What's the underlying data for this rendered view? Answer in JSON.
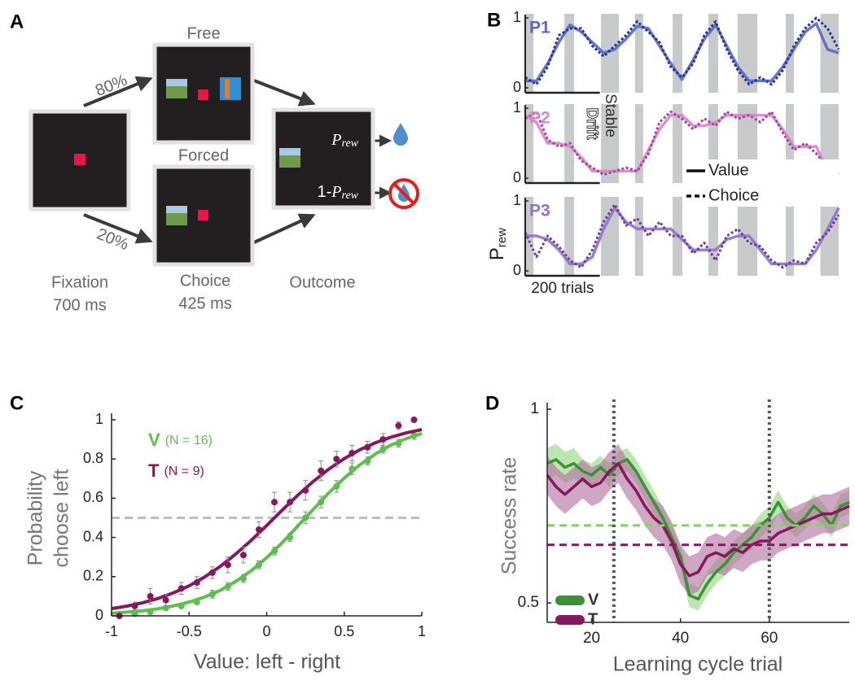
{
  "diagram": {
    "panel_label": "A",
    "free": "Free",
    "forced": "Forced",
    "free_pct": "80%",
    "forced_pct": "20%",
    "stages": [
      {
        "name": "Fixation",
        "duration": "700 ms"
      },
      {
        "name": "Choice",
        "duration": "425 ms"
      },
      {
        "name": "Outcome"
      }
    ],
    "reward": {
      "symbol": "P",
      "sub": "rew"
    },
    "no_reward": {
      "prefix": "1-",
      "symbol": "P",
      "sub": "rew"
    }
  },
  "chart_data": [
    {
      "type": "line",
      "panel_label": "B",
      "ylabel": "P",
      "ylabel_sub": "rew",
      "xlim": [
        0,
        840
      ],
      "ylim": [
        0,
        1
      ],
      "yticks": [
        0,
        1
      ],
      "scalebar": {
        "value": 200,
        "label": "200 trials"
      },
      "shaded": [
        [
          0,
          22
        ],
        [
          105,
          131
        ],
        [
          203,
          251
        ],
        [
          294,
          316
        ],
        [
          395,
          421
        ],
        [
          491,
          517
        ],
        [
          569,
          622
        ],
        [
          698,
          720
        ],
        [
          791,
          840
        ]
      ],
      "shade_color": "#c8c9ca",
      "annotations": [
        "Drift",
        "Stable"
      ],
      "legend": [
        {
          "name": "Value",
          "dash": "solid"
        },
        {
          "name": "Choice",
          "dash": "dashed"
        }
      ],
      "x": [
        0,
        30,
        60,
        90,
        120,
        150,
        180,
        210,
        240,
        270,
        300,
        330,
        360,
        390,
        420,
        450,
        480,
        510,
        540,
        570,
        600,
        630,
        660,
        690,
        720,
        750,
        780,
        810,
        840
      ],
      "panels": [
        {
          "label": "P1",
          "series": [
            {
              "color": "#5868c0",
              "values": [
                0.1,
                0.1,
                0.35,
                0.65,
                0.9,
                0.8,
                0.65,
                0.5,
                0.55,
                0.7,
                0.88,
                0.85,
                0.6,
                0.35,
                0.12,
                0.4,
                0.7,
                0.9,
                0.6,
                0.3,
                0.1,
                0.1,
                0.1,
                0.3,
                0.55,
                0.8,
                0.92,
                0.55,
                0.5
              ]
            },
            {
              "color": "#23349c",
              "values": [
                0.15,
                0.05,
                0.3,
                0.75,
                0.85,
                0.85,
                0.6,
                0.45,
                0.6,
                0.75,
                0.95,
                0.8,
                0.65,
                0.3,
                0.15,
                0.35,
                0.75,
                0.95,
                0.55,
                0.25,
                0.05,
                0.15,
                0.05,
                0.25,
                0.6,
                0.85,
                1.0,
                0.85,
                0.55
              ]
            }
          ]
        },
        {
          "label": "P2",
          "series": [
            {
              "color": "#d585cc",
              "values": [
                0.9,
                0.8,
                0.5,
                0.5,
                0.45,
                0.3,
                0.1,
                0.1,
                0.1,
                0.1,
                0.1,
                0.4,
                0.7,
                0.9,
                0.9,
                0.75,
                0.75,
                0.8,
                0.9,
                0.9,
                0.9,
                0.9,
                0.9,
                0.7,
                0.45,
                0.45,
                0.45,
                0.1,
                0.1
              ]
            },
            {
              "color": "#a8439e",
              "values": [
                0.85,
                0.95,
                0.55,
                0.45,
                0.5,
                0.25,
                0.15,
                0.05,
                0.1,
                0.15,
                0.1,
                0.35,
                0.8,
                0.95,
                0.85,
                0.7,
                0.85,
                0.75,
                0.95,
                0.85,
                0.9,
                0.8,
                0.95,
                0.65,
                0.4,
                0.5,
                0.35,
                0.15,
                0.05
              ]
            }
          ]
        },
        {
          "label": "P3",
          "series": [
            {
              "color": "#9070c8",
              "values": [
                0.5,
                0.5,
                0.45,
                0.3,
                0.1,
                0.1,
                0.2,
                0.6,
                0.9,
                0.7,
                0.6,
                0.6,
                0.6,
                0.6,
                0.45,
                0.3,
                0.3,
                0.3,
                0.45,
                0.5,
                0.5,
                0.3,
                0.1,
                0.1,
                0.1,
                0.1,
                0.3,
                0.6,
                0.9
              ]
            },
            {
              "color": "#6840a8",
              "values": [
                0.55,
                0.2,
                0.5,
                0.35,
                0.15,
                0.05,
                0.3,
                0.7,
                0.95,
                0.65,
                0.75,
                0.5,
                0.7,
                0.5,
                0.5,
                0.25,
                0.4,
                0.15,
                0.5,
                0.6,
                0.4,
                0.35,
                0.15,
                0.05,
                0.15,
                0.1,
                0.4,
                0.55,
                0.8
              ]
            }
          ]
        }
      ]
    },
    {
      "type": "scatter",
      "panel_label": "C",
      "xlabel": "Value: left - right",
      "ylabel": [
        "Probability",
        "choose left"
      ],
      "xlim": [
        -1,
        1
      ],
      "ylim": [
        0,
        1
      ],
      "xticks": [
        -1,
        -0.5,
        0,
        0.5,
        1
      ],
      "yticks": [
        0,
        0.2,
        0.4,
        0.6,
        0.8,
        1
      ],
      "hline": 0.5,
      "hline_color": "#bdbdbd",
      "fit_x": [
        -1,
        -0.9,
        -0.8,
        -0.7,
        -0.6,
        -0.5,
        -0.4,
        -0.3,
        -0.2,
        -0.1,
        0,
        0.1,
        0.2,
        0.3,
        0.4,
        0.5,
        0.6,
        0.7,
        0.8,
        0.9,
        1
      ],
      "points_x": [
        -0.95,
        -0.85,
        -0.75,
        -0.65,
        -0.55,
        -0.45,
        -0.35,
        -0.25,
        -0.15,
        -0.05,
        0.05,
        0.15,
        0.25,
        0.35,
        0.45,
        0.55,
        0.65,
        0.75,
        0.85,
        0.95
      ],
      "series": [
        {
          "name": "V",
          "note": "(N = 16)",
          "color": "#5cbf4b",
          "fit": [
            0.013,
            0.019,
            0.026,
            0.036,
            0.051,
            0.07,
            0.096,
            0.13,
            0.175,
            0.23,
            0.297,
            0.373,
            0.458,
            0.542,
            0.627,
            0.703,
            0.77,
            0.825,
            0.87,
            0.904,
            0.93
          ],
          "values": [
            0,
            0.01,
            0.02,
            0.04,
            0.05,
            0.07,
            0.11,
            0.15,
            0.19,
            0.26,
            0.33,
            0.4,
            0.5,
            0.58,
            0.66,
            0.75,
            0.79,
            0.85,
            0.88,
            0.92
          ],
          "errors": [
            0.01,
            0.01,
            0.01,
            0.01,
            0.01,
            0.01,
            0.02,
            0.02,
            0.02,
            0.02,
            0.02,
            0.02,
            0.03,
            0.03,
            0.03,
            0.03,
            0.02,
            0.02,
            0.02,
            0.02
          ]
        },
        {
          "name": "T",
          "note": "(N = 9)",
          "color": "#86195e",
          "fit": [
            0.037,
            0.05,
            0.067,
            0.089,
            0.118,
            0.153,
            0.198,
            0.252,
            0.315,
            0.385,
            0.461,
            0.539,
            0.615,
            0.685,
            0.748,
            0.802,
            0.847,
            0.882,
            0.911,
            0.933,
            0.95
          ],
          "values": [
            0,
            0.05,
            0.1,
            0.08,
            0.14,
            0.17,
            0.22,
            0.26,
            0.31,
            0.44,
            0.58,
            0.58,
            0.64,
            0.74,
            0.8,
            0.83,
            0.86,
            0.9,
            0.97,
            1.0
          ],
          "errors": [
            0.01,
            0.02,
            0.04,
            0.03,
            0.03,
            0.03,
            0.03,
            0.04,
            0.04,
            0.04,
            0.05,
            0.05,
            0.05,
            0.05,
            0.04,
            0.04,
            0.03,
            0.03,
            0.02,
            0.01
          ]
        }
      ]
    },
    {
      "type": "line",
      "panel_label": "D",
      "xlabel": "Learning cycle trial",
      "ylabel": "Success rate",
      "xlim": [
        10,
        78
      ],
      "ylim": [
        0.45,
        1
      ],
      "xticks": [
        20,
        40,
        60
      ],
      "yticks": [
        0.5,
        1
      ],
      "vlines": [
        25,
        60
      ],
      "hlines": [
        {
          "value": 0.7,
          "color": "#7fd35f"
        },
        {
          "value": 0.65,
          "color": "#86195e"
        }
      ],
      "x": [
        10,
        12,
        14,
        16,
        18,
        20,
        22,
        24,
        26,
        28,
        30,
        32,
        34,
        36,
        38,
        40,
        42,
        44,
        46,
        48,
        50,
        52,
        54,
        56,
        58,
        60,
        62,
        64,
        66,
        68,
        70,
        72,
        74,
        76,
        78
      ],
      "series": [
        {
          "name": "V",
          "color": "#3e8e3a",
          "band_color": "#8fd67a",
          "values": [
            0.86,
            0.87,
            0.85,
            0.86,
            0.84,
            0.83,
            0.85,
            0.83,
            0.86,
            0.87,
            0.84,
            0.8,
            0.76,
            0.72,
            0.67,
            0.62,
            0.52,
            0.51,
            0.55,
            0.58,
            0.6,
            0.63,
            0.65,
            0.67,
            0.7,
            0.72,
            0.76,
            0.72,
            0.7,
            0.72,
            0.75,
            0.73,
            0.7,
            0.75,
            0.76
          ],
          "errors": [
            0.04,
            0.04,
            0.04,
            0.04,
            0.03,
            0.03,
            0.03,
            0.03,
            0.03,
            0.03,
            0.03,
            0.03,
            0.03,
            0.03,
            0.03,
            0.03,
            0.03,
            0.03,
            0.03,
            0.03,
            0.03,
            0.03,
            0.03,
            0.03,
            0.03,
            0.03,
            0.03,
            0.03,
            0.03,
            0.03,
            0.03,
            0.03,
            0.03,
            0.03,
            0.03
          ]
        },
        {
          "name": "T",
          "color": "#86195e",
          "band_color": "#b06a9e",
          "values": [
            0.83,
            0.8,
            0.78,
            0.8,
            0.82,
            0.8,
            0.81,
            0.84,
            0.86,
            0.82,
            0.79,
            0.75,
            0.72,
            0.7,
            0.66,
            0.6,
            0.57,
            0.58,
            0.62,
            0.63,
            0.62,
            0.64,
            0.63,
            0.65,
            0.66,
            0.66,
            0.68,
            0.69,
            0.7,
            0.71,
            0.72,
            0.73,
            0.73,
            0.74,
            0.75
          ],
          "errors": [
            0.05,
            0.05,
            0.05,
            0.05,
            0.05,
            0.05,
            0.05,
            0.05,
            0.05,
            0.05,
            0.05,
            0.05,
            0.05,
            0.05,
            0.05,
            0.05,
            0.05,
            0.05,
            0.05,
            0.05,
            0.05,
            0.05,
            0.05,
            0.05,
            0.05,
            0.05,
            0.05,
            0.05,
            0.05,
            0.05,
            0.05,
            0.05,
            0.05,
            0.05,
            0.05
          ]
        }
      ]
    }
  ]
}
